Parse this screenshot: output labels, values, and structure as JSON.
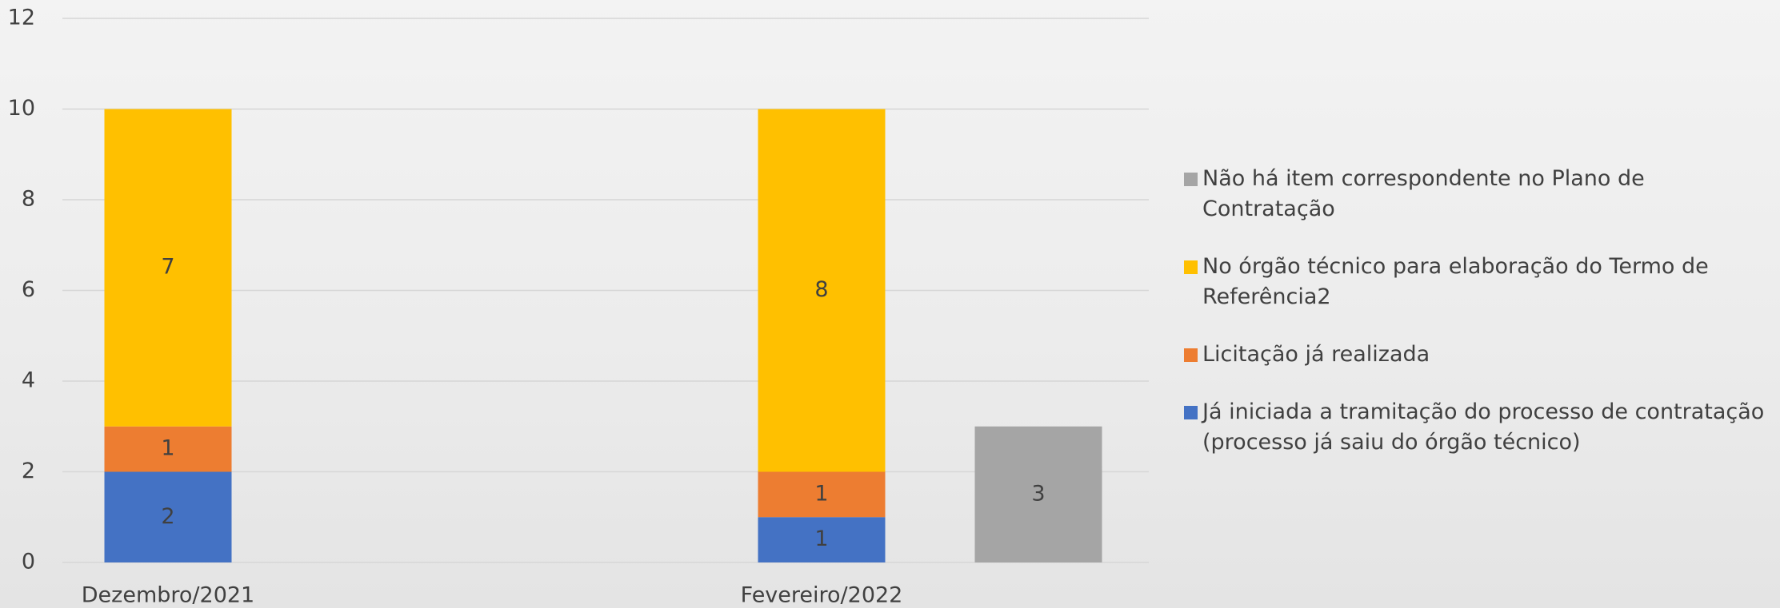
{
  "chart_data": {
    "type": "stacked-bar",
    "categories": [
      "Dezembro/2021",
      "Fevereiro/2022"
    ],
    "series": [
      {
        "name": "Já iniciada a tramitação do processo de contratação (processo já saiu do órgão técnico)",
        "color": "#4472c4",
        "stack": 1,
        "values": [
          2,
          1
        ]
      },
      {
        "name": "Licitação já realizada",
        "color": "#ed7d31",
        "stack": 1,
        "values": [
          1,
          1
        ]
      },
      {
        "name": "No órgão técnico para elaboração do Termo de Referência2",
        "color": "#ffc000",
        "stack": 1,
        "values": [
          7,
          8
        ]
      },
      {
        "name": "Não há item correspondente no Plano de Contratação",
        "color": "#a5a5a5",
        "stack": 2,
        "values": [
          null,
          3
        ]
      }
    ],
    "ylim": [
      0,
      12
    ],
    "yticks": [
      0,
      2,
      4,
      6,
      8,
      10,
      12
    ],
    "grid": true,
    "legend": "right"
  }
}
